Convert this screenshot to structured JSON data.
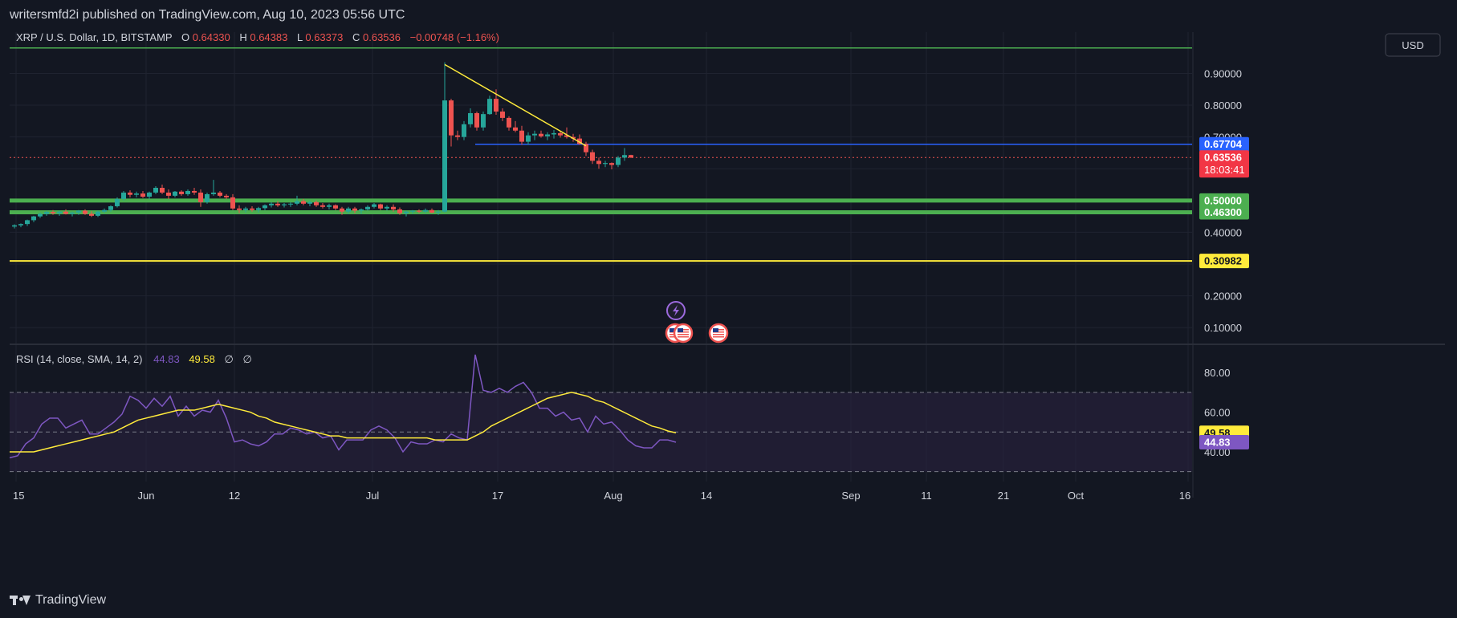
{
  "header": {
    "published": "writersmfd2i published on TradingView.com, Aug 10, 2023 05:56 UTC"
  },
  "footer": {
    "brand": "TradingView"
  },
  "colors": {
    "bg": "#131722",
    "grid": "#1f2330",
    "text": "#d1d4dc",
    "up": "#26a69a",
    "down": "#ef5350",
    "support": "#4caf50",
    "trend": "#ffeb3b",
    "level_blue": "#2962ff",
    "rsi": "#7e57c2",
    "rsi_band": "#2a2240"
  },
  "chart_data": [
    {
      "type": "candlestick",
      "legend": {
        "symbol": "XRP / U.S. Dollar, 1D, BITSTAMP",
        "o_label": "O",
        "o": "0.64330",
        "h_label": "H",
        "h": "0.64383",
        "l_label": "L",
        "l": "0.63373",
        "c_label": "C",
        "c": "0.63536",
        "change": "−0.00748 (−1.16%)"
      },
      "currency": "USD",
      "yticks": [
        "0.90000",
        "0.80000",
        "0.70000",
        "0.40000",
        "0.20000",
        "0.10000"
      ],
      "ylim": [
        0.05,
        1.03
      ],
      "x_labels": [
        "15",
        "Jun",
        "12",
        "Jul",
        "17",
        "Aug",
        "14",
        "Sep",
        "11",
        "21",
        "Oct",
        "16"
      ],
      "price_labels": [
        {
          "value": "0.67704",
          "type": "blue"
        },
        {
          "value": "0.63536",
          "countdown": "18:03:41",
          "type": "red"
        },
        {
          "value": "0.50000",
          "type": "green"
        },
        {
          "value": "0.46300",
          "type": "green"
        },
        {
          "value": "0.30982",
          "type": "yellow"
        }
      ],
      "horizontal_levels": [
        0.98,
        0.677,
        0.5,
        0.463,
        0.3098
      ],
      "current_price": 0.63536,
      "candles": [
        [
          0,
          0.418,
          0.425,
          0.412,
          0.422
        ],
        [
          1,
          0.422,
          0.428,
          0.416,
          0.426
        ],
        [
          2,
          0.426,
          0.44,
          0.42,
          0.438
        ],
        [
          3,
          0.438,
          0.452,
          0.432,
          0.45
        ],
        [
          4,
          0.45,
          0.462,
          0.445,
          0.458
        ],
        [
          5,
          0.458,
          0.468,
          0.452,
          0.464
        ],
        [
          6,
          0.464,
          0.47,
          0.455,
          0.46
        ],
        [
          7,
          0.46,
          0.468,
          0.452,
          0.465
        ],
        [
          8,
          0.465,
          0.472,
          0.456,
          0.458
        ],
        [
          9,
          0.458,
          0.465,
          0.45,
          0.462
        ],
        [
          10,
          0.462,
          0.47,
          0.455,
          0.468
        ],
        [
          11,
          0.468,
          0.472,
          0.455,
          0.458
        ],
        [
          12,
          0.458,
          0.466,
          0.448,
          0.452
        ],
        [
          13,
          0.452,
          0.468,
          0.448,
          0.465
        ],
        [
          14,
          0.465,
          0.475,
          0.46,
          0.47
        ],
        [
          15,
          0.47,
          0.485,
          0.465,
          0.482
        ],
        [
          16,
          0.482,
          0.51,
          0.478,
          0.505
        ],
        [
          17,
          0.505,
          0.53,
          0.5,
          0.525
        ],
        [
          18,
          0.525,
          0.532,
          0.51,
          0.518
        ],
        [
          19,
          0.518,
          0.528,
          0.51,
          0.522
        ],
        [
          20,
          0.522,
          0.53,
          0.508,
          0.512
        ],
        [
          21,
          0.512,
          0.528,
          0.505,
          0.525
        ],
        [
          22,
          0.525,
          0.545,
          0.52,
          0.54
        ],
        [
          23,
          0.54,
          0.55,
          0.52,
          0.525
        ],
        [
          24,
          0.525,
          0.535,
          0.505,
          0.515
        ],
        [
          25,
          0.515,
          0.53,
          0.51,
          0.528
        ],
        [
          26,
          0.528,
          0.532,
          0.515,
          0.52
        ],
        [
          27,
          0.52,
          0.535,
          0.515,
          0.53
        ],
        [
          28,
          0.53,
          0.54,
          0.518,
          0.525
        ],
        [
          29,
          0.525,
          0.535,
          0.48,
          0.495
        ],
        [
          30,
          0.495,
          0.525,
          0.49,
          0.52
        ],
        [
          31,
          0.52,
          0.565,
          0.515,
          0.525
        ],
        [
          32,
          0.525,
          0.53,
          0.51,
          0.515
        ],
        [
          33,
          0.515,
          0.52,
          0.505,
          0.51
        ],
        [
          34,
          0.51,
          0.52,
          0.47,
          0.475
        ],
        [
          35,
          0.475,
          0.485,
          0.46,
          0.47
        ],
        [
          36,
          0.47,
          0.48,
          0.462,
          0.475
        ],
        [
          37,
          0.475,
          0.482,
          0.465,
          0.47
        ],
        [
          38,
          0.47,
          0.48,
          0.462,
          0.476
        ],
        [
          39,
          0.476,
          0.488,
          0.47,
          0.485
        ],
        [
          40,
          0.485,
          0.495,
          0.478,
          0.49
        ],
        [
          41,
          0.49,
          0.498,
          0.48,
          0.485
        ],
        [
          42,
          0.485,
          0.492,
          0.478,
          0.488
        ],
        [
          43,
          0.488,
          0.495,
          0.48,
          0.49
        ],
        [
          44,
          0.49,
          0.515,
          0.485,
          0.498
        ],
        [
          45,
          0.498,
          0.505,
          0.485,
          0.49
        ],
        [
          46,
          0.49,
          0.5,
          0.482,
          0.495
        ],
        [
          47,
          0.495,
          0.5,
          0.48,
          0.485
        ],
        [
          48,
          0.485,
          0.492,
          0.475,
          0.48
        ],
        [
          49,
          0.48,
          0.49,
          0.472,
          0.485
        ],
        [
          50,
          0.485,
          0.488,
          0.47,
          0.475
        ],
        [
          51,
          0.475,
          0.48,
          0.455,
          0.465
        ],
        [
          52,
          0.465,
          0.48,
          0.458,
          0.475
        ],
        [
          53,
          0.475,
          0.48,
          0.46,
          0.468
        ],
        [
          54,
          0.468,
          0.475,
          0.458,
          0.472
        ],
        [
          55,
          0.472,
          0.485,
          0.468,
          0.48
        ],
        [
          56,
          0.48,
          0.492,
          0.475,
          0.488
        ],
        [
          57,
          0.488,
          0.49,
          0.47,
          0.475
        ],
        [
          58,
          0.475,
          0.485,
          0.468,
          0.48
        ],
        [
          59,
          0.48,
          0.488,
          0.465,
          0.472
        ],
        [
          60,
          0.472,
          0.478,
          0.455,
          0.46
        ],
        [
          61,
          0.46,
          0.468,
          0.45,
          0.465
        ],
        [
          62,
          0.465,
          0.47,
          0.458,
          0.468
        ],
        [
          63,
          0.468,
          0.472,
          0.46,
          0.465
        ],
        [
          64,
          0.465,
          0.475,
          0.46,
          0.47
        ],
        [
          65,
          0.47,
          0.475,
          0.46,
          0.462
        ],
        [
          66,
          0.462,
          0.47,
          0.455,
          0.465
        ],
        [
          67,
          0.465,
          0.935,
          0.462,
          0.815
        ],
        [
          68,
          0.815,
          0.82,
          0.67,
          0.705
        ],
        [
          69,
          0.705,
          0.72,
          0.69,
          0.7
        ],
        [
          70,
          0.7,
          0.75,
          0.69,
          0.74
        ],
        [
          71,
          0.74,
          0.79,
          0.73,
          0.775
        ],
        [
          72,
          0.775,
          0.78,
          0.72,
          0.73
        ],
        [
          73,
          0.73,
          0.78,
          0.72,
          0.772
        ],
        [
          74,
          0.772,
          0.83,
          0.77,
          0.82
        ],
        [
          75,
          0.82,
          0.85,
          0.77,
          0.78
        ],
        [
          76,
          0.78,
          0.79,
          0.75,
          0.76
        ],
        [
          77,
          0.76,
          0.765,
          0.72,
          0.73
        ],
        [
          78,
          0.73,
          0.75,
          0.715,
          0.72
        ],
        [
          79,
          0.72,
          0.735,
          0.675,
          0.685
        ],
        [
          80,
          0.685,
          0.715,
          0.675,
          0.705
        ],
        [
          81,
          0.705,
          0.72,
          0.69,
          0.71
        ],
        [
          82,
          0.71,
          0.72,
          0.698,
          0.702
        ],
        [
          83,
          0.702,
          0.715,
          0.69,
          0.708
        ],
        [
          84,
          0.708,
          0.722,
          0.695,
          0.712
        ],
        [
          85,
          0.712,
          0.72,
          0.698,
          0.705
        ],
        [
          86,
          0.705,
          0.73,
          0.695,
          0.7
        ],
        [
          87,
          0.7,
          0.71,
          0.685,
          0.695
        ],
        [
          88,
          0.695,
          0.708,
          0.675,
          0.678
        ],
        [
          89,
          0.678,
          0.685,
          0.64,
          0.652
        ],
        [
          90,
          0.652,
          0.66,
          0.615,
          0.625
        ],
        [
          91,
          0.625,
          0.635,
          0.6,
          0.615
        ],
        [
          92,
          0.615,
          0.625,
          0.605,
          0.618
        ],
        [
          93,
          0.618,
          0.62,
          0.598,
          0.612
        ],
        [
          94,
          0.612,
          0.64,
          0.605,
          0.635
        ],
        [
          95,
          0.635,
          0.665,
          0.625,
          0.643
        ],
        [
          96,
          0.643,
          0.6438,
          0.6337,
          0.6354
        ]
      ],
      "trendline": [
        [
          67,
          0.928
        ],
        [
          89,
          0.672
        ]
      ],
      "event_icons": [
        "lightning-icon",
        "us-flag-icon",
        "us-flag-icon",
        "us-flag-icon"
      ]
    },
    {
      "type": "line",
      "legend": {
        "name": "RSI (14, close, SMA, 14, 2)",
        "rsi": "44.83",
        "ma": "49.58",
        "na1": "∅",
        "na2": "∅"
      },
      "yticks": [
        "80.00",
        "60.00",
        "40.00"
      ],
      "bands": [
        70,
        50,
        30
      ],
      "ylim": [
        25,
        93
      ],
      "value_labels": [
        {
          "value": "49.58",
          "type": "yellow"
        },
        {
          "value": "44.83",
          "type": "purple"
        }
      ],
      "series": [
        {
          "values": [
            37,
            38,
            44,
            47,
            54,
            57,
            57,
            52,
            54,
            56,
            49,
            49,
            52,
            55,
            59,
            68,
            66,
            62,
            67,
            63,
            68,
            58,
            63,
            58,
            61,
            60,
            66,
            57,
            45,
            46,
            44,
            43,
            45,
            49,
            49,
            52,
            51,
            49,
            50,
            47,
            48,
            41,
            46,
            46,
            46,
            51,
            53,
            51,
            47,
            40,
            45,
            44,
            44,
            46,
            45,
            49,
            47,
            46,
            89,
            71,
            70,
            72,
            70,
            73,
            75,
            70,
            62,
            62,
            58,
            60,
            56,
            57,
            50,
            58,
            54,
            55,
            51,
            46,
            43,
            42,
            42,
            46,
            46,
            44.83
          ]
        },
        {
          "values": [
            40,
            40,
            40,
            40,
            41,
            42,
            43,
            44,
            45,
            46,
            47,
            48,
            49,
            50,
            52,
            54,
            56,
            57,
            58,
            59,
            60,
            61,
            61,
            61,
            62,
            63,
            64,
            63,
            62,
            61,
            60,
            58,
            57,
            55,
            54,
            53,
            52,
            51,
            50,
            49,
            48,
            48,
            47,
            47,
            47,
            47,
            47,
            47,
            47,
            47,
            47,
            47,
            47,
            46,
            46,
            46,
            46,
            46,
            48,
            50,
            53,
            55,
            57,
            59,
            61,
            63,
            65,
            67,
            68,
            69,
            70,
            69,
            68,
            66,
            65,
            63,
            61,
            59,
            57,
            55,
            53,
            52,
            50.5,
            49.58
          ]
        }
      ]
    }
  ]
}
